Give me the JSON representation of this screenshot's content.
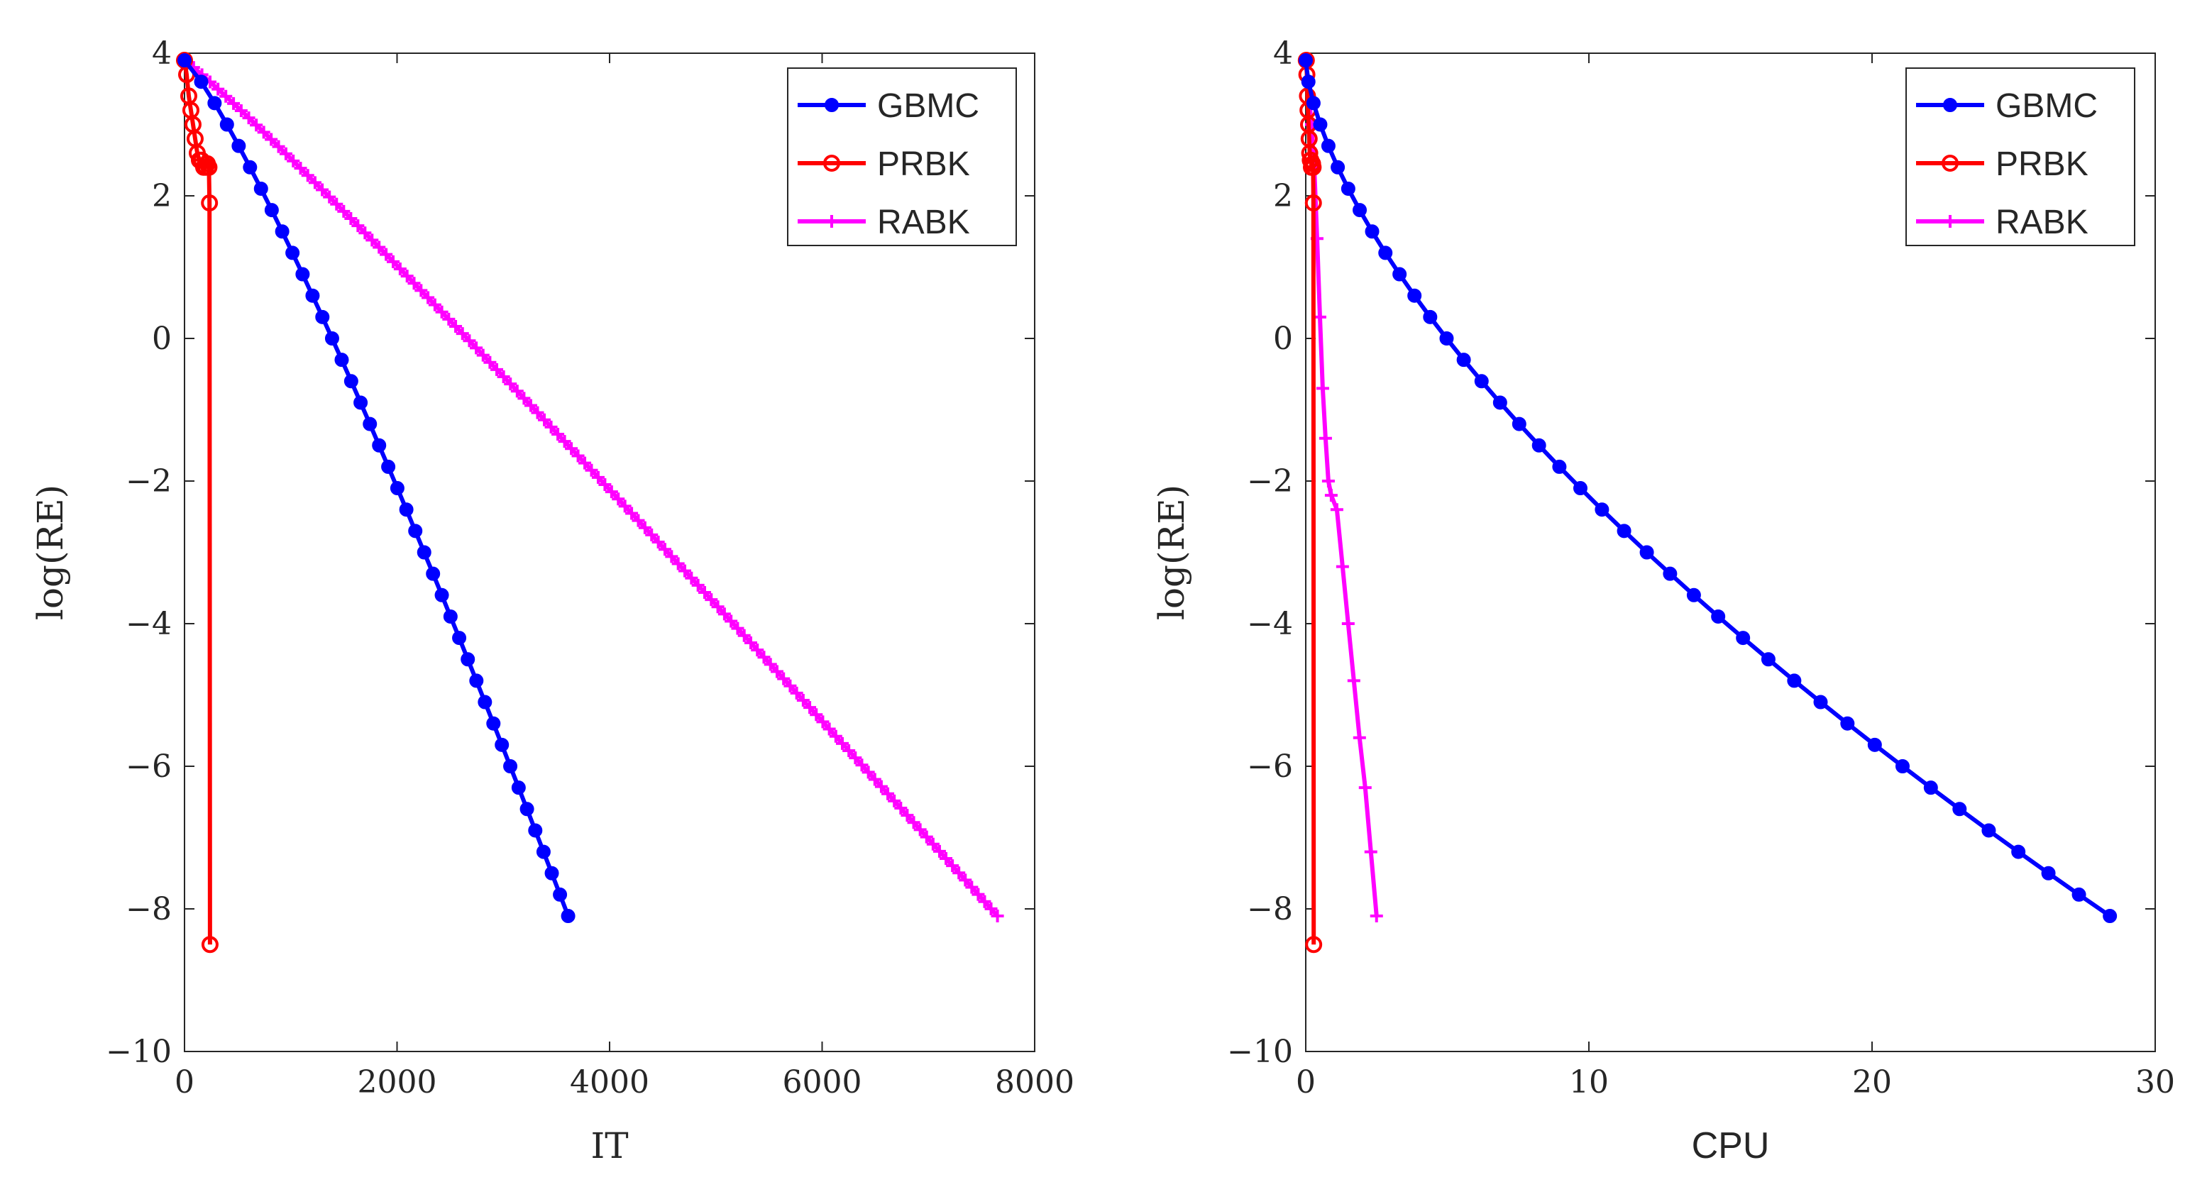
{
  "figure": {
    "title": "",
    "panels": 2
  },
  "legend_order": [
    "GBMC",
    "PRBK",
    "RABK"
  ],
  "series_style": {
    "GBMC": {
      "color": "#0000ff",
      "marker": "dot"
    },
    "PRBK": {
      "color": "#ff0000",
      "marker": "circle"
    },
    "RABK": {
      "color": "#ff00ff",
      "marker": "plus"
    }
  },
  "chart_data": [
    {
      "type": "line",
      "title": "",
      "xlabel": "IT",
      "ylabel": "log(RE)",
      "xlim": [
        0,
        8000
      ],
      "ylim": [
        -10,
        4
      ],
      "xticks": [
        0,
        2000,
        4000,
        6000,
        8000
      ],
      "yticks": [
        4,
        2,
        0,
        -2,
        -4,
        -6,
        -8,
        -10
      ],
      "xtick_labels": [
        "0",
        "2000",
        "4000",
        "6000",
        "8000"
      ],
      "ytick_labels": [
        "4",
        "2",
        "0",
        "−2",
        "−4",
        "−6",
        "−8",
        "−10"
      ],
      "legend": {
        "location": "top-right",
        "entries": [
          "GBMC",
          "PRBK",
          "RABK"
        ]
      },
      "series": [
        {
          "name": "GBMC",
          "x_start": 0,
          "x_end": 3610,
          "y_start": 3.9,
          "y_end": -8.1,
          "n_points": 41,
          "x_power": 0.85
        },
        {
          "name": "PRBK",
          "x": [
            0,
            20,
            40,
            60,
            80,
            100,
            120,
            140,
            160,
            180,
            200,
            215,
            230,
            235,
            240
          ],
          "y": [
            3.9,
            3.7,
            3.4,
            3.2,
            3.0,
            2.8,
            2.6,
            2.5,
            2.5,
            2.4,
            2.4,
            2.45,
            2.4,
            1.9,
            -8.5
          ]
        },
        {
          "name": "RABK",
          "x_start": 0,
          "x_end": 7650,
          "y_start": 3.9,
          "y_end": -8.1,
          "n_points": 120,
          "x_power": 0.94
        }
      ]
    },
    {
      "type": "line",
      "title": "",
      "xlabel": "CPU",
      "ylabel": "log(RE)",
      "xlim": [
        0,
        30
      ],
      "ylim": [
        -10,
        4
      ],
      "xticks": [
        0,
        10,
        20,
        30
      ],
      "yticks": [
        4,
        2,
        0,
        -2,
        -4,
        -6,
        -8,
        -10
      ],
      "xtick_labels": [
        "0",
        "10",
        "20",
        "30"
      ],
      "ytick_labels": [
        "4",
        "2",
        "0",
        "−2",
        "−4",
        "−6",
        "−8",
        "−10"
      ],
      "legend": {
        "location": "top-right",
        "entries": [
          "GBMC",
          "PRBK",
          "RABK"
        ]
      },
      "series": [
        {
          "name": "GBMC",
          "x_start": 0,
          "x_end": 28.4,
          "y_start": 3.9,
          "y_end": -8.1,
          "n_points": 41,
          "x_power": 1.55
        },
        {
          "name": "PRBK",
          "x": [
            0.02,
            0.04,
            0.06,
            0.08,
            0.1,
            0.12,
            0.14,
            0.16,
            0.18,
            0.2,
            0.22,
            0.24,
            0.26,
            0.27,
            0.28
          ],
          "y": [
            3.9,
            3.7,
            3.4,
            3.2,
            3.0,
            2.8,
            2.6,
            2.5,
            2.5,
            2.4,
            2.4,
            2.45,
            2.4,
            1.9,
            -8.5
          ]
        },
        {
          "name": "RABK",
          "x": [
            0,
            0.2,
            0.3,
            0.4,
            0.5,
            0.6,
            0.7,
            0.8,
            0.9,
            1.1,
            1.3,
            1.5,
            1.7,
            1.9,
            2.1,
            2.3,
            2.5
          ],
          "y": [
            3.9,
            3.0,
            2.4,
            1.4,
            0.3,
            -0.7,
            -1.4,
            -2.0,
            -2.2,
            -2.4,
            -3.2,
            -4.0,
            -4.8,
            -5.6,
            -6.3,
            -7.2,
            -8.1
          ]
        }
      ]
    }
  ]
}
